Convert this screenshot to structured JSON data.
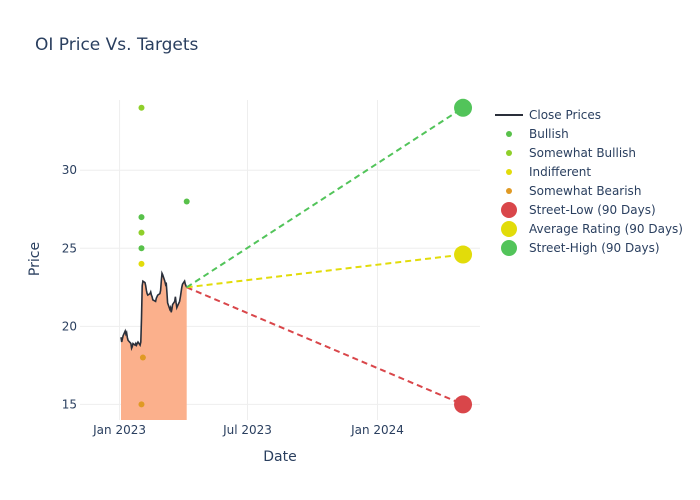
{
  "chart_data": {
    "type": "line",
    "title": "OI Price Vs. Targets",
    "xlabel": "Date",
    "ylabel": "Price",
    "x_range": [
      "2022-11-06",
      "2024-05-25"
    ],
    "ylim": [
      14,
      34.5
    ],
    "x_ticks": [
      {
        "date": "2023-01-01",
        "label": "Jan 2023"
      },
      {
        "date": "2023-07-01",
        "label": "Jul 2023"
      },
      {
        "date": "2024-01-01",
        "label": "Jan 2024"
      }
    ],
    "y_ticks": [
      15,
      20,
      25,
      30
    ],
    "close_prices": {
      "name": "Close Prices",
      "color": "#2a2f3a",
      "fill": "#fbb08c",
      "points": [
        [
          "2023-01-03",
          19.3
        ],
        [
          "2023-01-04",
          19.0
        ],
        [
          "2023-01-05",
          19.2
        ],
        [
          "2023-01-06",
          19.4
        ],
        [
          "2023-01-09",
          19.7
        ],
        [
          "2023-01-10",
          19.5
        ],
        [
          "2023-01-11",
          19.6
        ],
        [
          "2023-01-12",
          19.3
        ],
        [
          "2023-01-13",
          19.1
        ],
        [
          "2023-01-17",
          18.9
        ],
        [
          "2023-01-18",
          18.6
        ],
        [
          "2023-01-19",
          18.7
        ],
        [
          "2023-01-20",
          18.9
        ],
        [
          "2023-01-23",
          18.8
        ],
        [
          "2023-01-24",
          18.9
        ],
        [
          "2023-01-25",
          18.8
        ],
        [
          "2023-01-26",
          18.9
        ],
        [
          "2023-01-27",
          19.0
        ],
        [
          "2023-01-30",
          18.8
        ],
        [
          "2023-01-31",
          19.0
        ],
        [
          "2023-02-01",
          20.5
        ],
        [
          "2023-02-02",
          22.6
        ],
        [
          "2023-02-03",
          22.9
        ],
        [
          "2023-02-06",
          22.8
        ],
        [
          "2023-02-07",
          22.6
        ],
        [
          "2023-02-08",
          22.3
        ],
        [
          "2023-02-09",
          22.1
        ],
        [
          "2023-02-10",
          22.0
        ],
        [
          "2023-02-13",
          22.1
        ],
        [
          "2023-02-14",
          22.2
        ],
        [
          "2023-02-15",
          22.0
        ],
        [
          "2023-02-16",
          21.9
        ],
        [
          "2023-02-17",
          21.7
        ],
        [
          "2023-02-21",
          21.6
        ],
        [
          "2023-02-22",
          21.8
        ],
        [
          "2023-02-23",
          21.9
        ],
        [
          "2023-02-24",
          22.0
        ],
        [
          "2023-02-27",
          22.1
        ],
        [
          "2023-02-28",
          22.3
        ],
        [
          "2023-03-01",
          22.9
        ],
        [
          "2023-03-02",
          23.4
        ],
        [
          "2023-03-03",
          23.3
        ],
        [
          "2023-03-06",
          22.9
        ],
        [
          "2023-03-07",
          22.7
        ],
        [
          "2023-03-08",
          22.8
        ],
        [
          "2023-03-09",
          22.2
        ],
        [
          "2023-03-10",
          21.5
        ],
        [
          "2023-03-13",
          21.1
        ],
        [
          "2023-03-14",
          21.2
        ],
        [
          "2023-03-15",
          20.9
        ],
        [
          "2023-03-16",
          21.1
        ],
        [
          "2023-03-17",
          21.4
        ],
        [
          "2023-03-20",
          21.6
        ],
        [
          "2023-03-21",
          21.9
        ],
        [
          "2023-03-22",
          21.5
        ],
        [
          "2023-03-23",
          21.2
        ],
        [
          "2023-03-24",
          21.3
        ],
        [
          "2023-03-27",
          21.6
        ],
        [
          "2023-03-28",
          21.9
        ],
        [
          "2023-03-29",
          22.2
        ],
        [
          "2023-03-30",
          22.5
        ],
        [
          "2023-03-31",
          22.7
        ],
        [
          "2023-04-03",
          22.9
        ],
        [
          "2023-04-04",
          22.7
        ],
        [
          "2023-04-05",
          22.6
        ],
        [
          "2023-04-06",
          22.5
        ]
      ]
    },
    "ratings": [
      {
        "name": "Bullish",
        "color": "#58c14a",
        "points": [
          [
            "2023-02-01",
            27
          ],
          [
            "2023-02-01",
            25
          ],
          [
            "2023-04-06",
            28
          ]
        ]
      },
      {
        "name": "Somewhat Bullish",
        "color": "#8fcf2a",
        "points": [
          [
            "2023-02-01",
            34
          ],
          [
            "2023-02-01",
            26
          ]
        ]
      },
      {
        "name": "Indifferent",
        "color": "#e2dc0a",
        "points": [
          [
            "2023-02-01",
            24
          ]
        ]
      },
      {
        "name": "Somewhat Bearish",
        "color": "#e09a24",
        "points": [
          [
            "2023-02-03",
            18
          ],
          [
            "2023-02-01",
            15
          ]
        ]
      }
    ],
    "targets": {
      "origin": [
        "2023-04-06",
        22.5
      ],
      "date": "2024-05-01",
      "items": [
        {
          "name": "Street-Low (90 Days)",
          "value": 15,
          "color": "#d9464a"
        },
        {
          "name": "Average Rating (90 Days)",
          "value": 24.6,
          "color": "#e2dc0a"
        },
        {
          "name": "Street-High (90 Days)",
          "value": 34,
          "color": "#52c45a"
        }
      ]
    }
  }
}
